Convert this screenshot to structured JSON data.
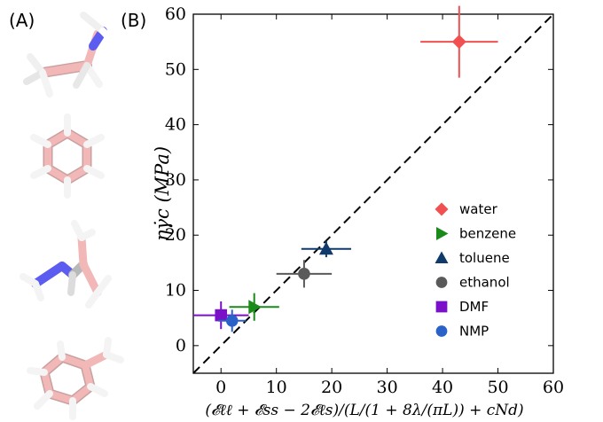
{
  "panel_labels": {
    "a": "(A)",
    "b": "(B)"
  },
  "molecules": [
    "ethylamine-like (N-containing, top)",
    "benzene ring",
    "branched N-containing",
    "toluene"
  ],
  "molecule_colors": {
    "carbon": "#f2b8b8",
    "hydrogen": "#f4f4f4",
    "nitrogen": "#5c5cf0",
    "bond_shadow": "#c9a0a0"
  },
  "chart_data": {
    "type": "scatter",
    "xlabel": "(𝓔ℓℓ + 𝓔ss − 2𝓔ℓs)/(L/(1 + 8λ/(πL)) + cNd)",
    "ylabel": "ηγ̇c (MPa)",
    "xlim": [
      -5,
      60
    ],
    "ylim": [
      -5,
      60
    ],
    "xticks": [
      0,
      10,
      20,
      30,
      40,
      50,
      60
    ],
    "yticks": [
      0,
      10,
      20,
      30,
      40,
      50,
      60
    ],
    "grid": false,
    "legend_placement": "lower-right",
    "reference_line": {
      "style": "dashed",
      "color": "#000000",
      "description": "y = x"
    },
    "series": [
      {
        "name": "water",
        "marker": "diamond",
        "color": "#f25050",
        "x": 43,
        "y": 55,
        "xerr": 7,
        "yerr": 6.5
      },
      {
        "name": "benzene",
        "marker": "triangle-right",
        "color": "#1a8a1a",
        "x": 6,
        "y": 7,
        "xerr": 4.5,
        "yerr": 2.5
      },
      {
        "name": "toluene",
        "marker": "triangle-up",
        "color": "#103a6b",
        "x": 19,
        "y": 17.5,
        "xerr": 4.5,
        "yerr": 1.5
      },
      {
        "name": "ethanol",
        "marker": "circle",
        "color": "#5a5a5a",
        "x": 15,
        "y": 13,
        "xerr": 5,
        "yerr": 2.5
      },
      {
        "name": "DMF",
        "marker": "square",
        "color": "#7a10c8",
        "x": 0,
        "y": 5.5,
        "xerr": 5,
        "yerr": 2.5
      },
      {
        "name": "NMP",
        "marker": "circle",
        "color": "#2a62c8",
        "x": 2,
        "y": 4.5,
        "xerr": 2.5,
        "yerr": 2
      }
    ]
  }
}
